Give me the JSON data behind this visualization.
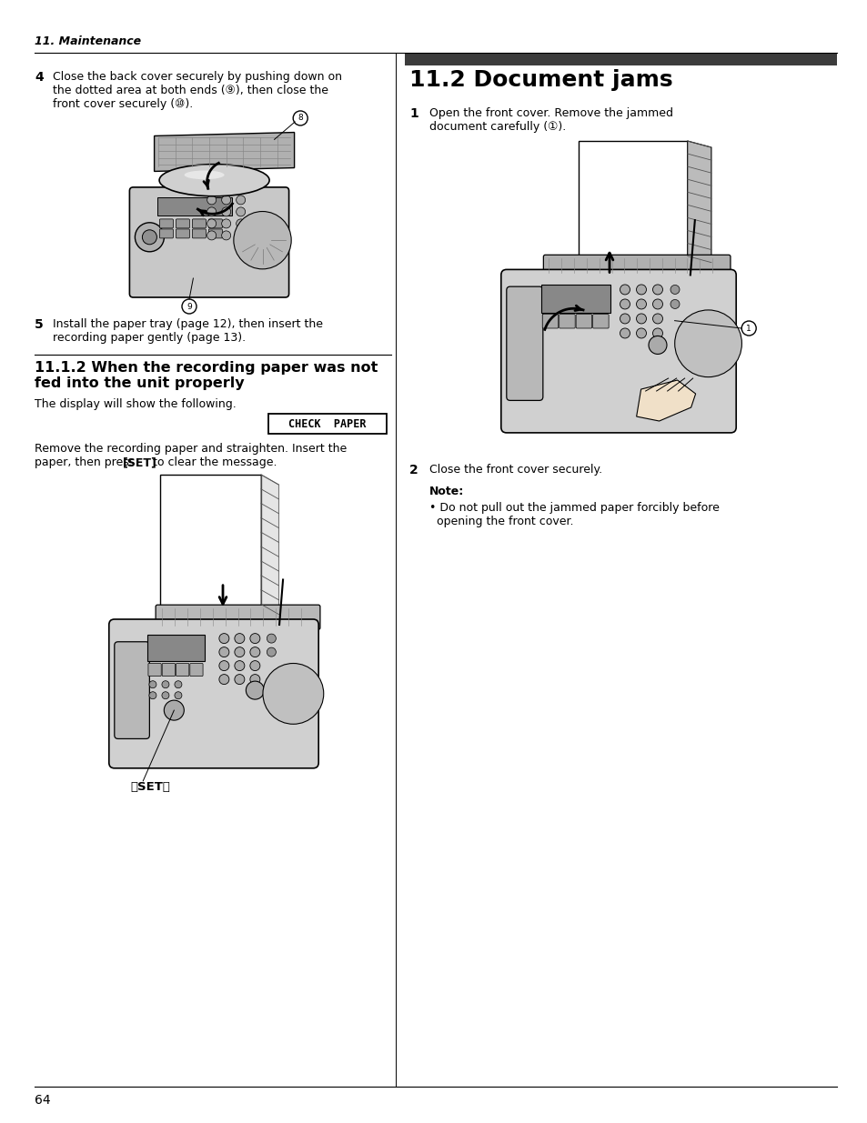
{
  "page_bg": "#ffffff",
  "header_text": "11. Maintenance",
  "step4_text_line1": "Close the back cover securely by pushing down on",
  "step4_text_line2": "the dotted area at both ends (⑨), then close the",
  "step4_text_line3": "front cover securely (⑩).",
  "step5_text_line1": "Install the paper tray (page 12), then insert the",
  "step5_text_line2": "recording paper gently (page 13).",
  "subsection_title_line1": "11.1.2 When the recording paper was not",
  "subsection_title_line2": "fed into the unit properly",
  "display_text": "The display will show the following.",
  "check_paper_box_text": "CHECK  PAPER",
  "remove_line1": "Remove the recording paper and straighten. Insert the",
  "remove_line2": "paper, then press 【SET】 to clear the message.",
  "set_label": "【SET】",
  "doc_jams_title": "11.2 Document jams",
  "step1_text_line1": "Open the front cover. Remove the jammed",
  "step1_text_line2": "document carefully (①).",
  "step2_text": "Close the front cover securely.",
  "note_title": "Note:",
  "note_bullet": "• Do not pull out the jammed paper forcibly before",
  "note_bullet2": "  opening the front cover.",
  "footer_num": "64",
  "text_color": "#000000",
  "dark_bar_color": "#3c3c3c",
  "body_fontsize": 9.0,
  "header_fontsize": 9.0,
  "title_fontsize": 18,
  "subsec_fontsize": 11.5,
  "step_num_fontsize": 10
}
